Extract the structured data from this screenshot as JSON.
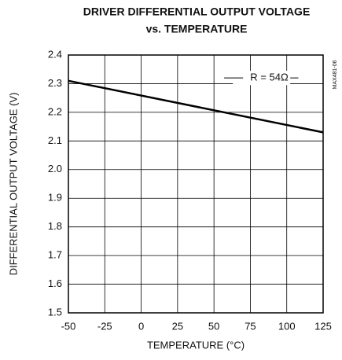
{
  "chart_data": {
    "type": "line",
    "title": "DRIVER DIFFERENTIAL OUTPUT VOLTAGE",
    "subtitle": "vs. TEMPERATURE",
    "x_label": "TEMPERATURE (°C)",
    "y_label": "DIFFERENTIAL OUTPUT VOLTAGE (V)",
    "side_note": "MAX481-06",
    "x": [
      -50,
      125
    ],
    "series": [
      {
        "name": "R = 54Ω",
        "color": "#000000",
        "values": [
          2.31,
          2.13
        ]
      }
    ],
    "xlim": [
      -50,
      125
    ],
    "xticks": [
      -50,
      -25,
      0,
      25,
      50,
      75,
      100,
      125
    ],
    "ylim": [
      1.5,
      2.4
    ],
    "yticks": [
      1.5,
      1.6,
      1.7,
      1.8,
      1.9,
      {
        "value": 2,
        "label": "2.0"
      },
      2.1,
      2.2,
      2.3,
      2.4
    ],
    "grid": true
  }
}
